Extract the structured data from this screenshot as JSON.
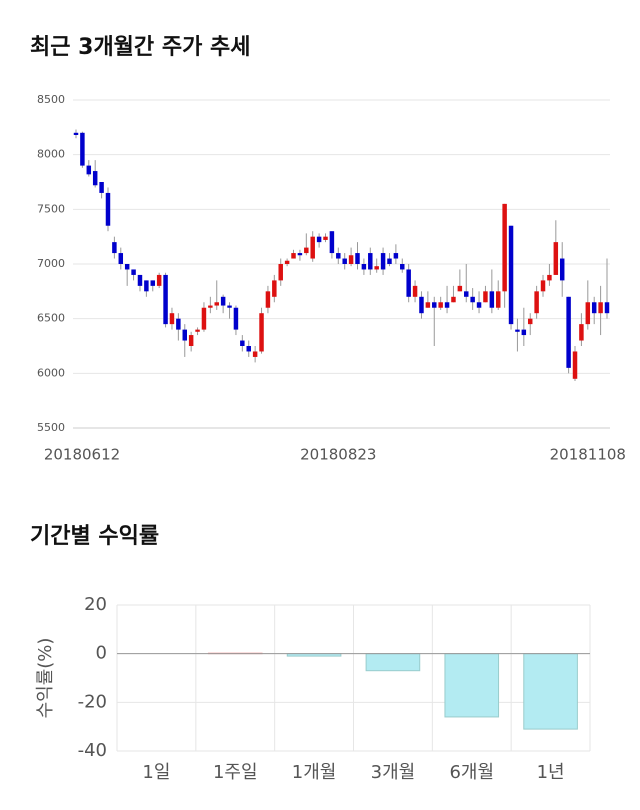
{
  "chart_data": [
    {
      "type": "candlestick",
      "title": "최근 3개월간 주가 추세",
      "categories": [
        "20180612",
        null,
        null,
        null,
        null,
        null,
        null,
        null,
        null,
        null,
        null,
        null,
        null,
        null,
        null,
        null,
        null,
        null,
        null,
        null,
        null,
        null,
        null,
        null,
        null,
        null,
        null,
        null,
        null,
        null,
        null,
        null,
        null,
        null,
        null,
        null,
        null,
        null,
        null,
        null,
        null,
        "20180823",
        null,
        null,
        null,
        null,
        null,
        null,
        null,
        null,
        null,
        null,
        null,
        null,
        null,
        null,
        null,
        null,
        null,
        null,
        null,
        null,
        null,
        null,
        null,
        null,
        null,
        null,
        null,
        null,
        null,
        null,
        null,
        null,
        null,
        null,
        null,
        null,
        null,
        null,
        "20181108",
        null,
        null,
        null
      ],
      "open": [
        8200,
        8200,
        7900,
        7850,
        7750,
        7650,
        7200,
        7100,
        7000,
        6950,
        6900,
        6850,
        6850,
        6800,
        6900,
        6450,
        6500,
        6400,
        6250,
        6380,
        6400,
        6600,
        6620,
        6700,
        6620,
        6600,
        6300,
        6250,
        6150,
        6200,
        6600,
        6700,
        6850,
        7000,
        7050,
        7100,
        7100,
        7050,
        7250,
        7220,
        7300,
        7100,
        7050,
        7000,
        7100,
        7000,
        7100,
        6950,
        7100,
        7050,
        7100,
        7000,
        6950,
        6700,
        6700,
        6600,
        6650,
        6600,
        6650,
        6650,
        6750,
        6750,
        6700,
        6650,
        6650,
        6750,
        6600,
        6750,
        7350,
        6400,
        6400,
        6450,
        6550,
        6750,
        6850,
        6900,
        7050,
        6700,
        5950,
        6300,
        6450,
        6650,
        6550,
        6650
      ],
      "high": [
        8230,
        8210,
        7950,
        7950,
        7750,
        7700,
        7250,
        7150,
        7000,
        6950,
        6900,
        6850,
        6850,
        6920,
        6920,
        6600,
        6550,
        6450,
        6380,
        6420,
        6650,
        6700,
        6850,
        6720,
        6650,
        6620,
        6350,
        6300,
        6250,
        6600,
        6800,
        6900,
        7050,
        7050,
        7130,
        7130,
        7280,
        7300,
        7280,
        7280,
        7300,
        7150,
        7100,
        7150,
        7200,
        7050,
        7150,
        7050,
        7150,
        7100,
        7180,
        7050,
        7000,
        6850,
        6750,
        6750,
        6700,
        6700,
        6800,
        6800,
        6950,
        7000,
        6780,
        6750,
        6800,
        6950,
        6850,
        7550,
        7350,
        6500,
        6600,
        6550,
        6800,
        6900,
        7000,
        7400,
        7200,
        6700,
        6250,
        6550,
        6850,
        6700,
        6800,
        7050
      ],
      "low": [
        8150,
        7880,
        7800,
        7700,
        7600,
        7300,
        7050,
        6950,
        6800,
        6850,
        6750,
        6700,
        6750,
        6780,
        6420,
        6400,
        6300,
        6150,
        6200,
        6350,
        6380,
        6550,
        6580,
        6550,
        6500,
        6350,
        6200,
        6150,
        6100,
        6180,
        6550,
        6650,
        6800,
        6980,
        7050,
        7030,
        7080,
        7020,
        7150,
        7200,
        7050,
        7000,
        6950,
        6980,
        6950,
        6900,
        6900,
        6920,
        6900,
        6980,
        7000,
        6920,
        6650,
        6650,
        6500,
        6600,
        6250,
        6580,
        6550,
        6650,
        6750,
        6650,
        6580,
        6550,
        6650,
        6550,
        6580,
        6600,
        6400,
        6200,
        6250,
        6350,
        6500,
        6700,
        6800,
        6900,
        6700,
        6000,
        5930,
        6250,
        6400,
        6450,
        6350,
        6500
      ],
      "close": [
        8180,
        7900,
        7820,
        7720,
        7650,
        7350,
        7100,
        7000,
        6950,
        6900,
        6800,
        6750,
        6800,
        6900,
        6450,
        6550,
        6400,
        6300,
        6350,
        6400,
        6600,
        6620,
        6650,
        6620,
        6600,
        6400,
        6250,
        6200,
        6200,
        6550,
        6750,
        6850,
        7000,
        7030,
        7100,
        7080,
        7150,
        7250,
        7200,
        7250,
        7100,
        7050,
        7000,
        7080,
        7000,
        6950,
        6950,
        6980,
        6950,
        7000,
        7050,
        6950,
        6700,
        6800,
        6550,
        6650,
        6600,
        6650,
        6600,
        6700,
        6800,
        6700,
        6650,
        6600,
        6750,
        6600,
        6750,
        7550,
        6450,
        6380,
        6350,
        6500,
        6750,
        6850,
        6900,
        7200,
        6850,
        6050,
        6200,
        6450,
        6650,
        6550,
        6650,
        6550
      ],
      "up_color": "#dd1111",
      "down_color": "#0000cc",
      "ylim": [
        5500,
        8500
      ],
      "yticks": [
        5500,
        6000,
        6500,
        7000,
        7500,
        8000,
        8500
      ],
      "grid": true
    },
    {
      "type": "bar",
      "title": "기간별 수익률",
      "ylabel": "수익률(%)",
      "categories": [
        "1일",
        "1주일",
        "1개월",
        "3개월",
        "6개월",
        "1년"
      ],
      "values": [
        0,
        0.2,
        -1,
        -7,
        -26,
        -31
      ],
      "colors": [
        "#f4a6a6",
        "#f4a6a6",
        "#b3ebf2",
        "#b3ebf2",
        "#b3ebf2",
        "#b3ebf2"
      ],
      "ylim": [
        -40,
        20
      ],
      "yticks": [
        -40,
        -20,
        0,
        20
      ],
      "grid": true
    }
  ]
}
